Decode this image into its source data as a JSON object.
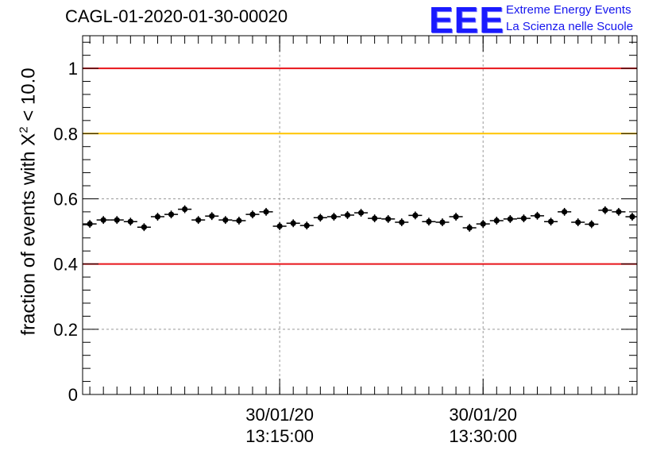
{
  "title": "CAGL-01-2020-01-30-00020",
  "logo": {
    "mark": "EEE",
    "line1": "Extreme Energy Events",
    "line2": "La Scienza nelle Scuole"
  },
  "colors": {
    "red_line": "#e8141a",
    "yellow_line": "#ffc400",
    "markers": "#000000",
    "logo_blue": "#1a1aff",
    "grid": "#999999"
  },
  "chart_data": {
    "type": "scatter",
    "title": "CAGL-01-2020-01-30-00020",
    "ylabel": {
      "prefix": "fraction of events with ",
      "chi": "X",
      "sup": "2",
      "suffix": " < 10.0"
    },
    "ylim": [
      0,
      1.1
    ],
    "yticks": [
      0,
      0.2,
      0.4,
      0.6,
      0.8,
      1
    ],
    "ytick_labels": [
      "0",
      "0.2",
      "0.4",
      "0.6",
      "0.8",
      "1"
    ],
    "xlim": [
      "30/01/2020 13:00:28",
      "30/01/2020 13:41:21"
    ],
    "xticks": [
      {
        "time": "30/01/2020 13:15:00",
        "date_label": "30/01/20",
        "time_label": "13:15:00"
      },
      {
        "time": "30/01/2020 13:30:00",
        "date_label": "30/01/20",
        "time_label": "13:30:00"
      }
    ],
    "grid": true,
    "reference_lines": [
      {
        "y": 1.0,
        "color": "#e8141a"
      },
      {
        "y": 0.8,
        "color": "#ffc400"
      },
      {
        "y": 0.4,
        "color": "#e8141a"
      }
    ],
    "series": [
      {
        "x": [
          "13:01:00",
          "13:02:00",
          "13:03:00",
          "13:04:00",
          "13:05:00",
          "13:06:00",
          "13:07:00",
          "13:08:00",
          "13:09:00",
          "13:10:00",
          "13:11:00",
          "13:12:00",
          "13:13:00",
          "13:14:00",
          "13:15:00",
          "13:16:00",
          "13:17:00",
          "13:18:00",
          "13:19:00",
          "13:20:00",
          "13:21:00",
          "13:22:00",
          "13:23:00",
          "13:24:00",
          "13:25:00",
          "13:26:00",
          "13:27:00",
          "13:28:00",
          "13:29:00",
          "13:30:00",
          "13:31:00",
          "13:32:00",
          "13:33:00",
          "13:34:00",
          "13:35:00",
          "13:36:00",
          "13:37:00",
          "13:38:00",
          "13:39:00",
          "13:40:00",
          "13:41:00"
        ],
        "y": [
          0.523,
          0.535,
          0.535,
          0.53,
          0.513,
          0.545,
          0.552,
          0.568,
          0.535,
          0.547,
          0.535,
          0.533,
          0.552,
          0.56,
          0.516,
          0.525,
          0.518,
          0.542,
          0.545,
          0.55,
          0.557,
          0.54,
          0.538,
          0.528,
          0.549,
          0.53,
          0.528,
          0.545,
          0.511,
          0.523,
          0.533,
          0.538,
          0.54,
          0.548,
          0.53,
          0.56,
          0.528,
          0.522,
          0.565,
          0.56,
          0.545
        ],
        "y_err": 0.012
      }
    ]
  }
}
